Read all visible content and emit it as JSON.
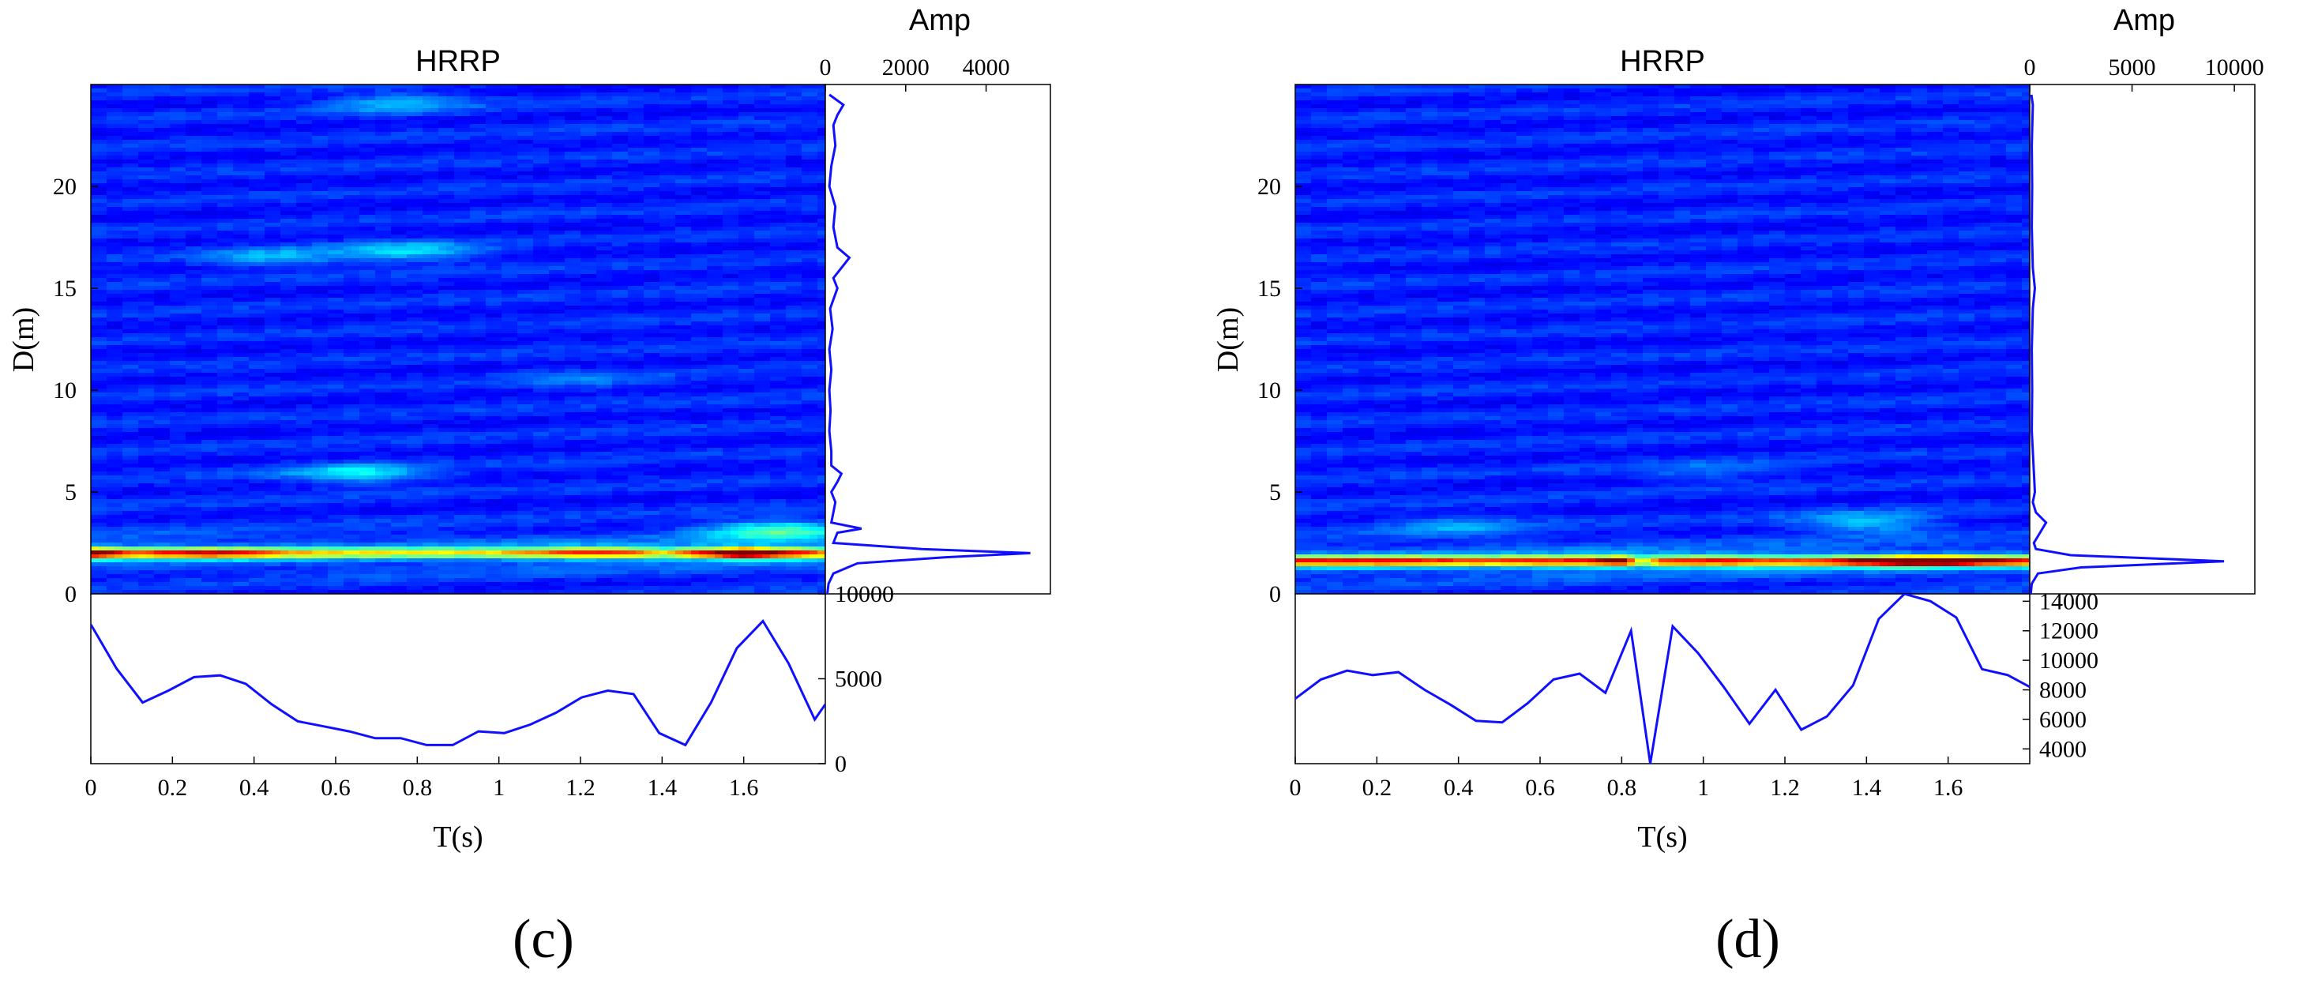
{
  "figure": {
    "panel_count": 2
  },
  "chart_data": [
    {
      "type": "heatmap",
      "panel": "(c)",
      "title": "HRRP",
      "heatmap": {
        "xlabel": "T(s)",
        "ylabel": "D(m)",
        "xlim": [
          0,
          1.8
        ],
        "ylim": [
          0,
          25
        ],
        "xticks": [
          0,
          0.2,
          0.4,
          0.6,
          0.8,
          1,
          1.2,
          1.4,
          1.6
        ],
        "xtick_labels": [
          "0",
          "0.2",
          "0.4",
          "0.6",
          "0.8",
          "1",
          "1.2",
          "1.4",
          "1.6"
        ],
        "yticks": [
          0,
          5,
          10,
          15,
          20
        ],
        "ytick_labels": [
          "0",
          "5",
          "10",
          "15",
          "20"
        ],
        "colormap": "jet",
        "bright_band_range_m": 2.0,
        "band_profile_t": [
          0,
          0.1,
          0.2,
          0.3,
          0.4,
          0.5,
          0.6,
          0.7,
          0.8,
          0.9,
          1.0,
          1.1,
          1.2,
          1.3,
          1.4,
          1.5,
          1.6,
          1.7,
          1.8
        ],
        "band_profile_intensity": [
          0.85,
          0.55,
          0.62,
          0.66,
          0.58,
          0.42,
          0.38,
          0.36,
          0.34,
          0.36,
          0.4,
          0.5,
          0.62,
          0.6,
          0.42,
          0.65,
          1.0,
          0.7,
          0.5
        ],
        "secondary_features": [
          {
            "t": 1.68,
            "d": 3.1,
            "intensity": 0.28
          },
          {
            "t": 0.65,
            "d": 5.9,
            "intensity": 0.2
          },
          {
            "t": 0.78,
            "d": 16.8,
            "intensity": 0.18
          },
          {
            "t": 0.45,
            "d": 16.5,
            "intensity": 0.14
          },
          {
            "t": 0.75,
            "d": 24.1,
            "intensity": 0.15
          },
          {
            "t": 1.2,
            "d": 10.5,
            "intensity": 0.08
          }
        ]
      },
      "range_profile": {
        "title": "Amp",
        "xlim": [
          0,
          5600
        ],
        "xticks": [
          0,
          2000,
          4000
        ],
        "xtick_labels": [
          "0",
          "2000",
          "4000"
        ],
        "d": [
          0,
          0.5,
          1.0,
          1.5,
          1.8,
          2.0,
          2.2,
          2.5,
          3.0,
          3.2,
          3.5,
          4.0,
          4.5,
          5.0,
          5.5,
          5.9,
          6.3,
          7.0,
          8.0,
          9.0,
          10.0,
          11.0,
          12.0,
          13.0,
          14.0,
          15.0,
          15.5,
          16.0,
          16.5,
          17.0,
          18.0,
          19.0,
          20.0,
          21.0,
          22.0,
          23.0,
          23.5,
          24.0,
          24.5
        ],
        "amp": [
          50,
          80,
          200,
          800,
          3000,
          5100,
          2400,
          200,
          300,
          900,
          150,
          200,
          250,
          150,
          300,
          400,
          150,
          150,
          100,
          130,
          100,
          150,
          100,
          180,
          120,
          300,
          200,
          400,
          600,
          300,
          200,
          250,
          100,
          150,
          250,
          200,
          300,
          450,
          100
        ]
      },
      "time_profile": {
        "ylim": [
          0,
          10000
        ],
        "yticks": [
          0,
          5000,
          10000
        ],
        "ytick_labels": [
          "0",
          "5000",
          "10000"
        ],
        "t": [
          0,
          0.063,
          0.127,
          0.19,
          0.253,
          0.317,
          0.38,
          0.443,
          0.507,
          0.57,
          0.633,
          0.697,
          0.76,
          0.823,
          0.887,
          0.95,
          1.013,
          1.077,
          1.14,
          1.203,
          1.267,
          1.33,
          1.393,
          1.457,
          1.52,
          1.583,
          1.647,
          1.71,
          1.774,
          1.8
        ],
        "amp": [
          8200,
          5600,
          3600,
          4300,
          5100,
          5200,
          4700,
          3500,
          2500,
          2200,
          1900,
          1500,
          1500,
          1100,
          1100,
          1900,
          1800,
          2300,
          3000,
          3900,
          4300,
          4100,
          1800,
          1100,
          3600,
          6800,
          8400,
          5900,
          2600,
          3500
        ]
      }
    },
    {
      "type": "heatmap",
      "panel": "(d)",
      "title": "HRRP",
      "heatmap": {
        "xlabel": "T(s)",
        "ylabel": "D(m)",
        "xlim": [
          0,
          1.8
        ],
        "ylim": [
          0,
          25
        ],
        "xticks": [
          0,
          0.2,
          0.4,
          0.6,
          0.8,
          1,
          1.2,
          1.4,
          1.6
        ],
        "xtick_labels": [
          "0",
          "0.2",
          "0.4",
          "0.6",
          "0.8",
          "1",
          "1.2",
          "1.4",
          "1.6"
        ],
        "yticks": [
          0,
          5,
          10,
          15,
          20
        ],
        "ytick_labels": [
          "0",
          "5",
          "10",
          "15",
          "20"
        ],
        "colormap": "jet",
        "bright_band_range_m": 1.6,
        "band_profile_t": [
          0,
          0.1,
          0.2,
          0.3,
          0.4,
          0.5,
          0.6,
          0.7,
          0.8,
          0.85,
          0.9,
          1.0,
          1.1,
          1.2,
          1.3,
          1.4,
          1.5,
          1.6,
          1.7,
          1.8
        ],
        "band_profile_intensity": [
          0.58,
          0.6,
          0.62,
          0.6,
          0.56,
          0.56,
          0.62,
          0.64,
          0.82,
          0.32,
          0.62,
          0.66,
          0.62,
          0.56,
          0.62,
          0.78,
          0.96,
          0.9,
          0.7,
          0.6
        ],
        "secondary_features": [
          {
            "t": 1.4,
            "d": 3.5,
            "intensity": 0.18
          },
          {
            "t": 0.4,
            "d": 3.3,
            "intensity": 0.12
          },
          {
            "t": 1.0,
            "d": 6.0,
            "intensity": 0.08
          }
        ]
      },
      "range_profile": {
        "title": "Amp",
        "xlim": [
          0,
          11000
        ],
        "xticks": [
          0,
          5000,
          10000
        ],
        "xtick_labels": [
          "0",
          "5000",
          "10000"
        ],
        "d": [
          0,
          0.5,
          1.0,
          1.3,
          1.6,
          1.9,
          2.2,
          2.5,
          3.0,
          3.5,
          4.0,
          4.5,
          5.0,
          6.0,
          7.0,
          8.0,
          10.0,
          12.0,
          14.0,
          15.0,
          16.0,
          18.0,
          20.0,
          22.0,
          24.0,
          24.5
        ],
        "amp": [
          50,
          100,
          400,
          2500,
          9500,
          2000,
          300,
          200,
          500,
          800,
          300,
          150,
          250,
          200,
          150,
          100,
          120,
          100,
          150,
          250,
          150,
          100,
          120,
          100,
          150,
          80
        ]
      },
      "time_profile": {
        "ylim": [
          3000,
          14500
        ],
        "yticks": [
          4000,
          6000,
          8000,
          10000,
          12000,
          14000
        ],
        "ytick_labels": [
          "4000",
          "6000",
          "8000",
          "10000",
          "12000",
          "14000"
        ],
        "t": [
          0,
          0.063,
          0.127,
          0.19,
          0.253,
          0.317,
          0.38,
          0.443,
          0.507,
          0.57,
          0.633,
          0.697,
          0.76,
          0.823,
          0.87,
          0.925,
          0.987,
          1.05,
          1.113,
          1.177,
          1.24,
          1.303,
          1.367,
          1.43,
          1.493,
          1.557,
          1.62,
          1.683,
          1.746,
          1.8
        ],
        "amp": [
          7400,
          8700,
          9300,
          9000,
          9200,
          8000,
          7000,
          5900,
          5800,
          7100,
          8700,
          9100,
          7800,
          12000,
          3000,
          12300,
          10500,
          8200,
          5700,
          8000,
          5300,
          6200,
          8300,
          12800,
          14500,
          14000,
          12900,
          9400,
          9000,
          8200
        ]
      }
    }
  ]
}
